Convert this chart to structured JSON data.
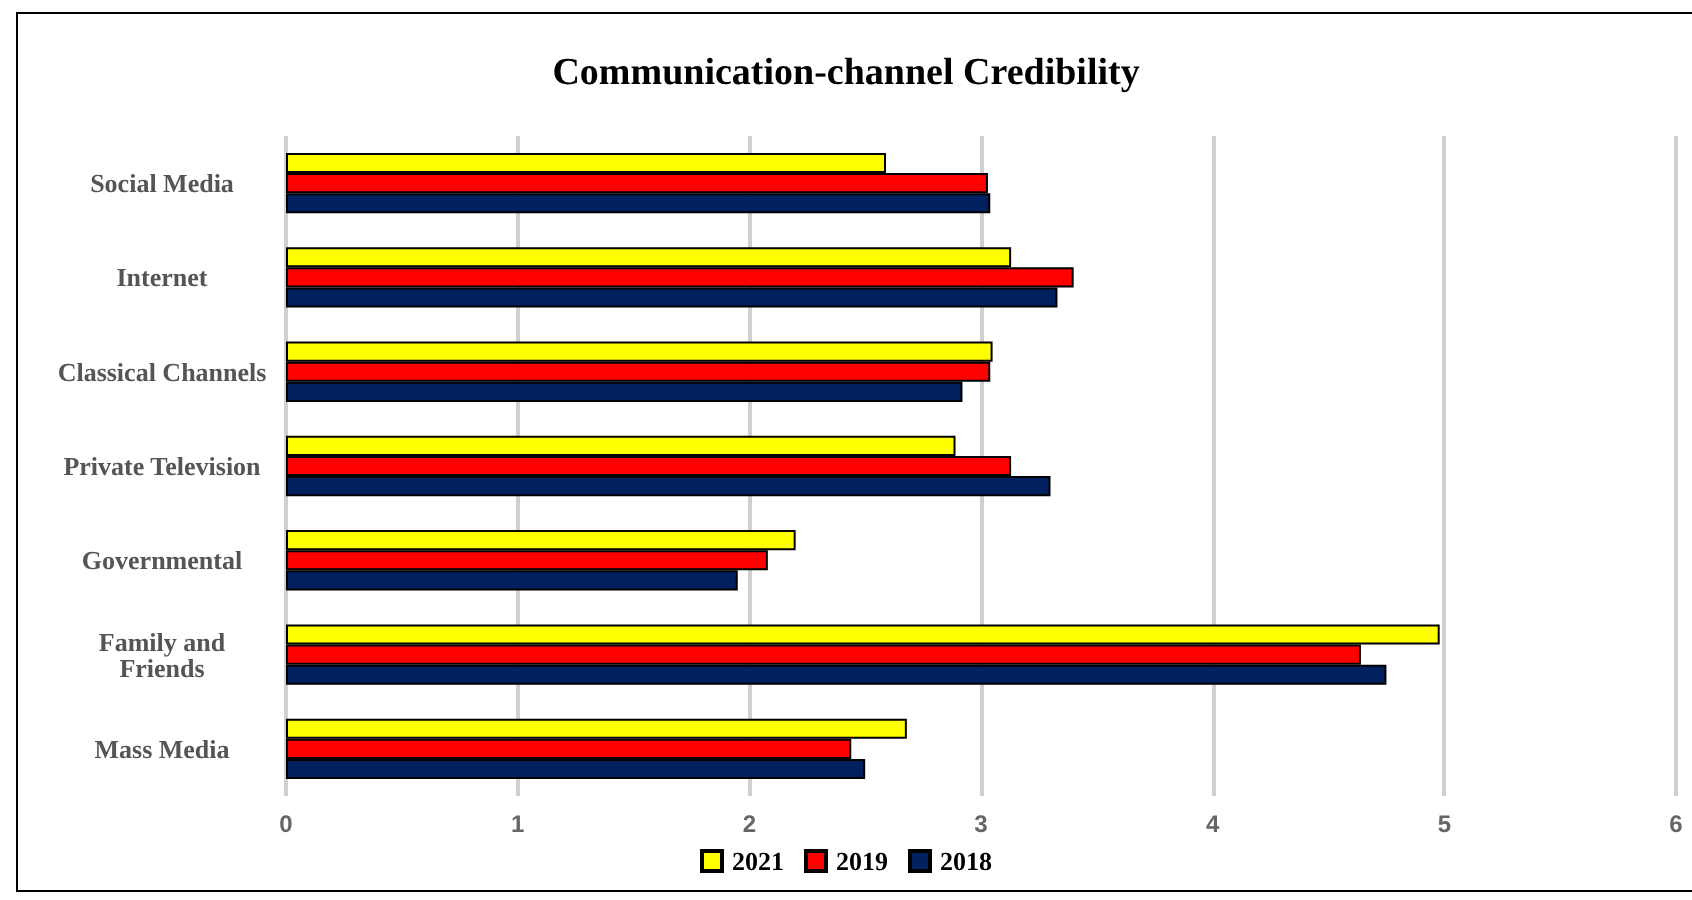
{
  "chart_data": {
    "type": "bar",
    "orientation": "horizontal",
    "title": "Communication-channel Credibility",
    "categories": [
      "Social Media",
      "Internet",
      "Classical Channels",
      "Private Television",
      "Governmental",
      "Family and\nFriends",
      "Mass Media"
    ],
    "series": [
      {
        "name": "2021",
        "color": "#ffff00",
        "values": [
          2.59,
          3.13,
          3.05,
          2.89,
          2.2,
          4.98,
          2.68
        ]
      },
      {
        "name": "2019",
        "color": "#ff0000",
        "values": [
          3.03,
          3.4,
          3.04,
          3.13,
          2.08,
          4.64,
          2.44
        ]
      },
      {
        "name": "2018",
        "color": "#002060",
        "values": [
          3.04,
          3.33,
          2.92,
          3.3,
          1.95,
          4.75,
          2.5
        ]
      }
    ],
    "xlim": [
      0,
      6
    ],
    "xticks": [
      0,
      1,
      2,
      3,
      4,
      5,
      6
    ],
    "grid": "x",
    "legend": "bottom"
  }
}
